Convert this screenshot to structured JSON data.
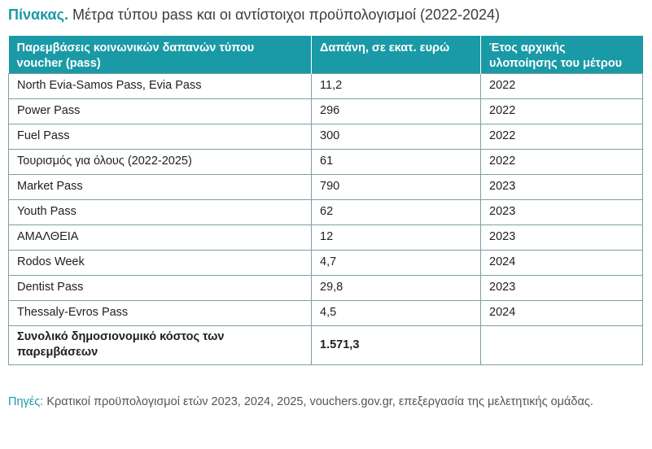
{
  "title": {
    "label": "Πίνακας.",
    "text": "Μέτρα τύπου pass και οι αντίστοιχοι προϋπολογισμοί (2022-2024)"
  },
  "table": {
    "headers": [
      "Παρεμβάσεις κοινωνικών δαπανών τύπου voucher (pass)",
      "Δαπάνη, σε εκατ. ευρώ",
      "Έτος αρχικής υλοποίησης του μέτρου"
    ],
    "rows": [
      [
        "North Evia-Samos Pass, Evia Pass",
        "11,2",
        "2022"
      ],
      [
        "Power Pass",
        "296",
        "2022"
      ],
      [
        "Fuel Pass",
        "300",
        "2022"
      ],
      [
        "Τουρισμός για όλους (2022-2025)",
        "61",
        "2022"
      ],
      [
        "Market Pass",
        "790",
        "2023"
      ],
      [
        "Youth Pass",
        "62",
        "2023"
      ],
      [
        "ΑΜΑΛΘΕΙΑ",
        "12",
        "2023"
      ],
      [
        "Rodos Week",
        "4,7",
        "2024"
      ],
      [
        "Dentist Pass",
        "29,8",
        "2023"
      ],
      [
        "Thessaly-Evros Pass",
        "4,5",
        "2024"
      ]
    ],
    "total": {
      "label": "Συνολικό δημοσιονομικό κόστος των παρεμβάσεων",
      "value": "1.571,3",
      "year": ""
    }
  },
  "source": {
    "label": "Πηγές:",
    "text": "Κρατικοί προϋπολογισμοί ετών 2023, 2024, 2025, vouchers.gov.gr, επεξεργασία της μελετητικής ομάδας."
  },
  "colors": {
    "accent": "#1a9aa6",
    "header_text": "#ffffff",
    "border": "#7f9ea3"
  }
}
